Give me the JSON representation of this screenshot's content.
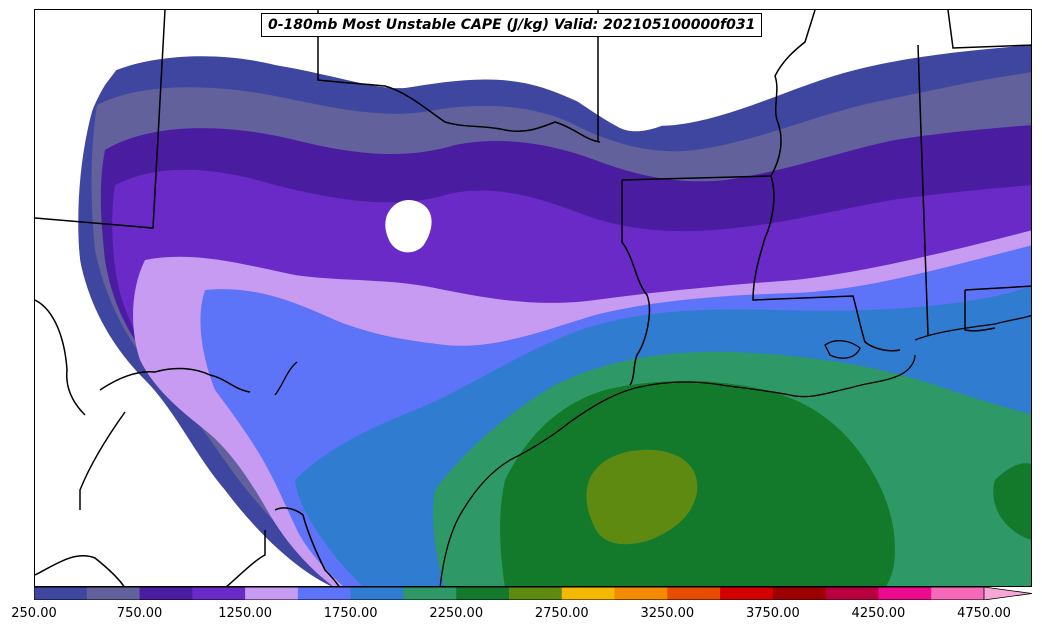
{
  "title": "0-180mb Most Unstable CAPE (J/kg) Valid: 202105100000f031",
  "colorbar": {
    "units": "J/kg",
    "extend": "max",
    "levels": [
      250,
      500,
      750,
      1000,
      1250,
      1500,
      1750,
      2000,
      2250,
      2500,
      2750,
      3000,
      3250,
      3500,
      3750,
      4000,
      4250,
      4500,
      4750
    ],
    "colors": [
      "#3e46a0",
      "#62619c",
      "#4a1ca0",
      "#6a2ac8",
      "#c79bf2",
      "#5d74f8",
      "#2f7cd0",
      "#2e9966",
      "#137a2c",
      "#5f8a12",
      "#f4b800",
      "#f48a00",
      "#e84c00",
      "#d20000",
      "#9c0000",
      "#b8003e",
      "#ec0a8e",
      "#f46ab8",
      "#f7a6d8"
    ],
    "tick_labels": [
      "250.00",
      "750.00",
      "1250.00",
      "1750.00",
      "2250.00",
      "2750.00",
      "3250.00",
      "3750.00",
      "4250.00",
      "4750.00"
    ],
    "tick_values": [
      250,
      750,
      1250,
      1750,
      2250,
      2750,
      3250,
      3750,
      4250,
      4750
    ]
  }
}
